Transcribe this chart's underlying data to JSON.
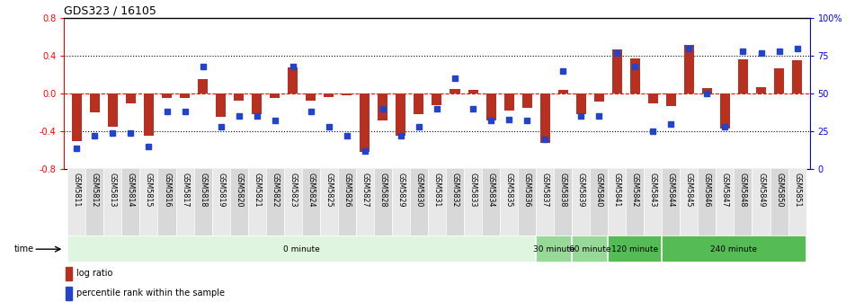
{
  "title": "GDS323 / 16105",
  "samples": [
    "GSM5811",
    "GSM5812",
    "GSM5813",
    "GSM5814",
    "GSM5815",
    "GSM5816",
    "GSM5817",
    "GSM5818",
    "GSM5819",
    "GSM5820",
    "GSM5821",
    "GSM5822",
    "GSM5823",
    "GSM5824",
    "GSM5825",
    "GSM5826",
    "GSM5827",
    "GSM5828",
    "GSM5829",
    "GSM5830",
    "GSM5831",
    "GSM5832",
    "GSM5833",
    "GSM5834",
    "GSM5835",
    "GSM5836",
    "GSM5837",
    "GSM5838",
    "GSM5839",
    "GSM5840",
    "GSM5841",
    "GSM5842",
    "GSM5843",
    "GSM5844",
    "GSM5845",
    "GSM5846",
    "GSM5847",
    "GSM5848",
    "GSM5849",
    "GSM5850",
    "GSM5851"
  ],
  "log_ratio": [
    -0.5,
    -0.2,
    -0.35,
    -0.1,
    -0.45,
    -0.05,
    -0.05,
    0.15,
    -0.25,
    -0.07,
    -0.22,
    -0.05,
    0.28,
    -0.07,
    -0.04,
    -0.02,
    -0.62,
    -0.28,
    -0.45,
    -0.22,
    -0.12,
    0.05,
    0.04,
    -0.28,
    -0.18,
    -0.15,
    -0.52,
    0.04,
    -0.22,
    -0.08,
    0.47,
    0.37,
    -0.1,
    -0.13,
    0.52,
    0.06,
    -0.37,
    0.36,
    0.07,
    0.27,
    0.35
  ],
  "percentile": [
    14,
    22,
    24,
    24,
    15,
    38,
    38,
    68,
    28,
    35,
    35,
    32,
    68,
    38,
    28,
    22,
    12,
    40,
    22,
    28,
    40,
    60,
    40,
    32,
    33,
    32,
    20,
    65,
    35,
    35,
    77,
    68,
    25,
    30,
    80,
    50,
    28,
    78,
    77,
    78,
    80
  ],
  "time_groups": [
    {
      "label": "0 minute",
      "start": 0,
      "end": 26,
      "color": "#e0f5e0"
    },
    {
      "label": "30 minute",
      "start": 26,
      "end": 28,
      "color": "#98d898"
    },
    {
      "label": "60 minute",
      "start": 28,
      "end": 30,
      "color": "#98d898"
    },
    {
      "label": "120 minute",
      "start": 30,
      "end": 33,
      "color": "#55bb55"
    },
    {
      "label": "240 minute",
      "start": 33,
      "end": 41,
      "color": "#55bb55"
    }
  ],
  "bar_color": "#b83020",
  "dot_color": "#2244cc",
  "ylim": [
    -0.8,
    0.8
  ],
  "y_ticks": [
    -0.8,
    -0.4,
    0.0,
    0.4,
    0.8
  ],
  "y2_ticks": [
    0,
    25,
    50,
    75,
    100
  ],
  "y2_tick_labels": [
    "0",
    "25",
    "50",
    "75",
    "100%"
  ],
  "legend_log_label": "log ratio",
  "legend_pct_label": "percentile rank within the sample",
  "title_fontsize": 9,
  "tick_fontsize": 7,
  "label_fontsize": 5.8
}
